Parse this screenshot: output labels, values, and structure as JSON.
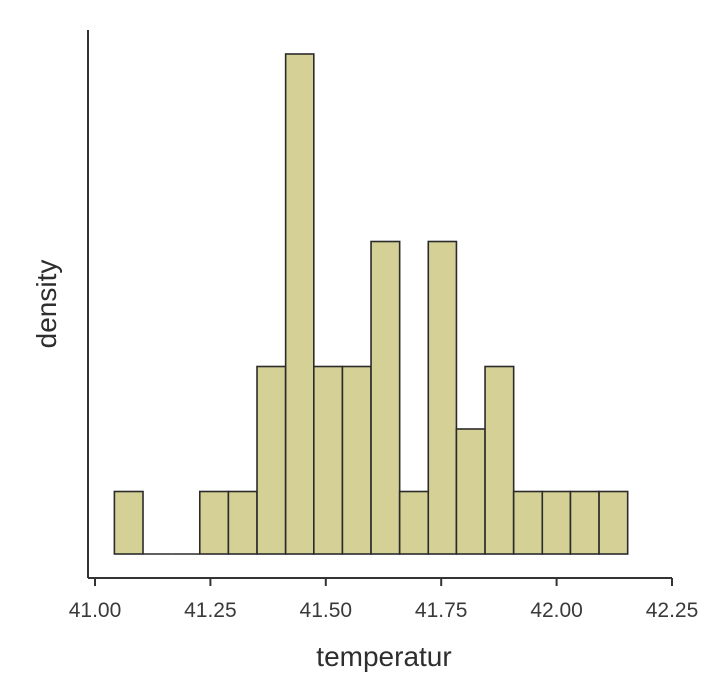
{
  "chart_data": {
    "type": "bar",
    "title": "",
    "xlabel": "temperatur",
    "ylabel": "density",
    "xlim": [
      41.0,
      42.25
    ],
    "x_ticks": [
      "41.00",
      "41.25",
      "41.50",
      "41.75",
      "42.00",
      "42.25"
    ],
    "y_ticks": [],
    "grid": false,
    "legend": "none",
    "bins": [
      {
        "start": 41.042,
        "end": 41.104,
        "count": 1
      },
      {
        "start": 41.104,
        "end": 41.166,
        "count": 0
      },
      {
        "start": 41.166,
        "end": 41.227,
        "count": 0
      },
      {
        "start": 41.227,
        "end": 41.289,
        "count": 1
      },
      {
        "start": 41.289,
        "end": 41.351,
        "count": 1
      },
      {
        "start": 41.351,
        "end": 41.413,
        "count": 3
      },
      {
        "start": 41.413,
        "end": 41.474,
        "count": 8
      },
      {
        "start": 41.474,
        "end": 41.536,
        "count": 3
      },
      {
        "start": 41.536,
        "end": 41.598,
        "count": 3
      },
      {
        "start": 41.598,
        "end": 41.66,
        "count": 5
      },
      {
        "start": 41.66,
        "end": 41.722,
        "count": 1
      },
      {
        "start": 41.722,
        "end": 41.783,
        "count": 5
      },
      {
        "start": 41.783,
        "end": 41.845,
        "count": 2
      },
      {
        "start": 41.845,
        "end": 41.907,
        "count": 3
      },
      {
        "start": 41.907,
        "end": 41.969,
        "count": 1
      },
      {
        "start": 41.969,
        "end": 42.03,
        "count": 1
      },
      {
        "start": 42.03,
        "end": 42.092,
        "count": 1
      },
      {
        "start": 42.092,
        "end": 42.154,
        "count": 1
      }
    ],
    "colors": {
      "bar_fill": "#d4d096",
      "bar_stroke": "#2b2b2b",
      "axis": "#333333"
    }
  }
}
